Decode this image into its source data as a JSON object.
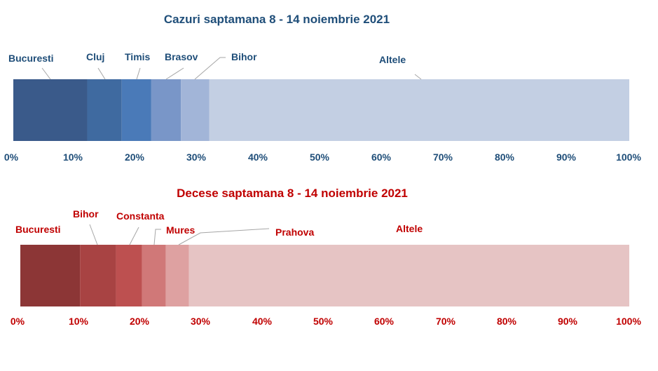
{
  "chart_data": [
    {
      "type": "bar",
      "orientation": "horizontal-stacked-100",
      "title": "Cazuri saptamana 8 - 14 noiembrie 2021",
      "title_color": "#1f4e79",
      "label_color": "#1f4e79",
      "leader_color": "#a6a6a6",
      "xlim": [
        0,
        100
      ],
      "ticks": [
        "0%",
        "10%",
        "20%",
        "30%",
        "40%",
        "50%",
        "60%",
        "70%",
        "80%",
        "90%",
        "100%"
      ],
      "grid": false,
      "series": [
        {
          "name": "Bucuresti",
          "value": 12.0,
          "color": "#3a5a8a"
        },
        {
          "name": "Cluj",
          "value": 5.6,
          "color": "#3f6aa0"
        },
        {
          "name": "Timis",
          "value": 4.8,
          "color": "#4a7ab8"
        },
        {
          "name": "Brasov",
          "value": 4.8,
          "color": "#7996c8"
        },
        {
          "name": "Bihor",
          "value": 4.6,
          "color": "#a2b5d8"
        },
        {
          "name": "Altele",
          "value": 68.2,
          "color": "#c3cfe3"
        }
      ]
    },
    {
      "type": "bar",
      "orientation": "horizontal-stacked-100",
      "title": "Decese saptamana 8 - 14 noiembrie 2021",
      "title_color": "#c00000",
      "label_color": "#c00000",
      "leader_color": "#a6a6a6",
      "xlim": [
        0,
        100
      ],
      "ticks": [
        "0%",
        "10%",
        "20%",
        "30%",
        "40%",
        "50%",
        "60%",
        "70%",
        "80%",
        "90%",
        "100%"
      ],
      "grid": false,
      "series": [
        {
          "name": "Bucuresti",
          "value": 9.8,
          "color": "#8c3636"
        },
        {
          "name": "Bihor",
          "value": 5.9,
          "color": "#a84343"
        },
        {
          "name": "Constanta",
          "value": 4.3,
          "color": "#bd5050"
        },
        {
          "name": "Mures",
          "value": 3.9,
          "color": "#d07878"
        },
        {
          "name": "Prahova",
          "value": 3.8,
          "color": "#dea1a1"
        },
        {
          "name": "Altele",
          "value": 72.3,
          "color": "#e6c4c4"
        }
      ]
    }
  ]
}
